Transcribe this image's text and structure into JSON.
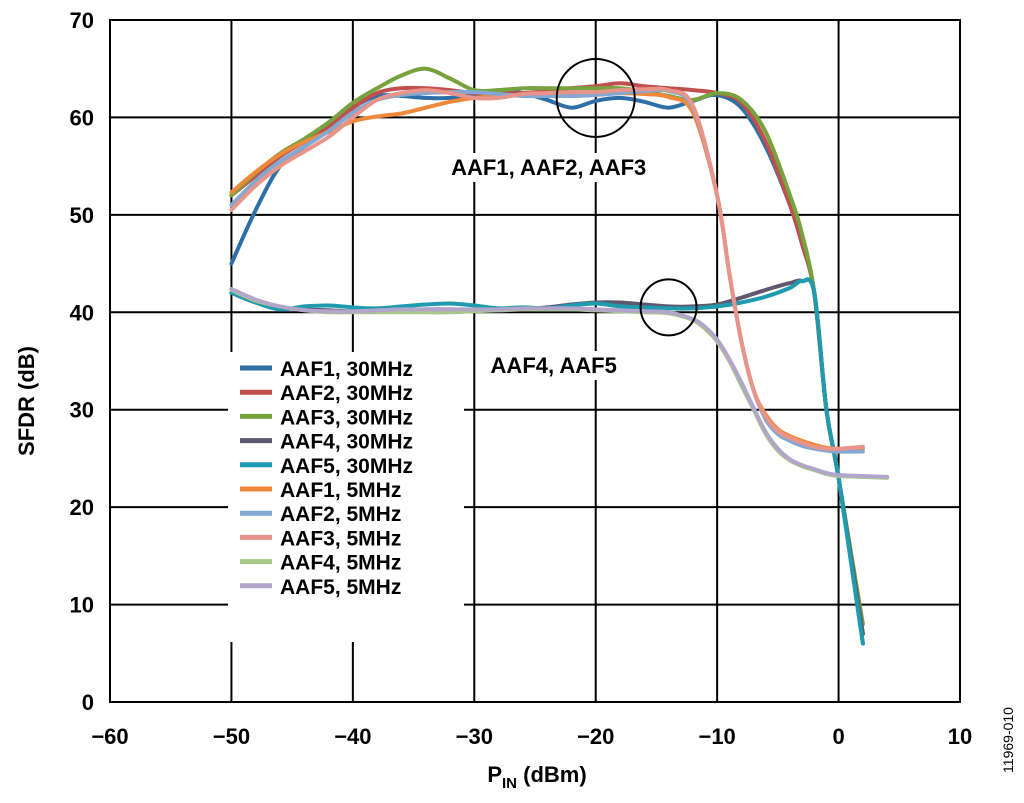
{
  "chart_data": {
    "type": "line",
    "xlabel_main": "P",
    "xlabel_sub": "IN",
    "xlabel_rest": " (dBm)",
    "ylabel": "SFDR (dB)",
    "xlim": [
      -60,
      10
    ],
    "ylim": [
      0,
      70
    ],
    "xticks": [
      -60,
      -50,
      -40,
      -30,
      -20,
      -10,
      0,
      10
    ],
    "xtick_labels": [
      "−60",
      "−50",
      "−40",
      "−30",
      "−20",
      "−10",
      "0",
      "10"
    ],
    "yticks": [
      0,
      10,
      20,
      30,
      40,
      50,
      60,
      70
    ],
    "ytick_labels": [
      "0",
      "10",
      "20",
      "30",
      "40",
      "50",
      "60",
      "70"
    ],
    "grid": true,
    "legend_position": "center-left",
    "figure_id": "11969-010",
    "annotations": [
      {
        "text": "AAF1, AAF2, AAF3",
        "circle_center": [
          -20,
          62
        ],
        "text_anchor": [
          -20,
          55
        ]
      },
      {
        "text": "AAF4, AAF5",
        "circle_center": [
          -14,
          40.5
        ],
        "text_anchor": [
          -20,
          35
        ]
      }
    ],
    "series": [
      {
        "name": "AAF1, 30MHz",
        "color": "#2e6fa7",
        "x": [
          -50,
          -48,
          -46,
          -44,
          -42,
          -40,
          -38,
          -36,
          -34,
          -32,
          -30,
          -28,
          -26,
          -24,
          -22,
          -20,
          -18,
          -16,
          -14,
          -12,
          -10,
          -8,
          -6,
          -4,
          -3,
          -2,
          -1,
          0,
          2
        ],
        "y": [
          45,
          50.5,
          55,
          57,
          58.7,
          61,
          62.2,
          62.2,
          62,
          62,
          62.3,
          62.8,
          62.5,
          61.8,
          61,
          61.7,
          62,
          61.6,
          61,
          61.7,
          62.3,
          61,
          57,
          51,
          47,
          42,
          30,
          23,
          6
        ]
      },
      {
        "name": "AAF2, 30MHz",
        "color": "#c0504d",
        "x": [
          -50,
          -48,
          -46,
          -44,
          -42,
          -40,
          -38,
          -36,
          -34,
          -32,
          -30,
          -28,
          -26,
          -24,
          -22,
          -20,
          -18,
          -16,
          -14,
          -12,
          -10,
          -8,
          -6,
          -4,
          -3,
          -2,
          -1,
          0,
          2
        ],
        "y": [
          52,
          54,
          56,
          57.5,
          59,
          61,
          62.5,
          63,
          63,
          62.8,
          62.5,
          62.5,
          62.5,
          62.7,
          63,
          63.2,
          63.5,
          63.2,
          63,
          62.8,
          62.5,
          61.5,
          57.5,
          51,
          47,
          42,
          30,
          23,
          7
        ]
      },
      {
        "name": "AAF3, 30MHz",
        "color": "#77a33e",
        "x": [
          -50,
          -48,
          -46,
          -44,
          -42,
          -40,
          -38,
          -36,
          -34,
          -32,
          -30,
          -28,
          -26,
          -24,
          -22,
          -20,
          -18,
          -16,
          -14,
          -12,
          -10,
          -8,
          -6,
          -4,
          -3,
          -2,
          -1,
          0,
          2
        ],
        "y": [
          52,
          54.3,
          56.3,
          57.8,
          59.5,
          61.5,
          63,
          64.3,
          65,
          64,
          62.8,
          62.8,
          63,
          63,
          63,
          63,
          63,
          62.7,
          62.2,
          61.8,
          62.5,
          61.8,
          58.5,
          52,
          48,
          42,
          30,
          23,
          8
        ]
      },
      {
        "name": "AAF4, 30MHz",
        "color": "#5f5870",
        "x": [
          -50,
          -48,
          -46,
          -44,
          -42,
          -40,
          -38,
          -36,
          -34,
          -32,
          -30,
          -28,
          -26,
          -24,
          -22,
          -20,
          -18,
          -16,
          -14,
          -12,
          -10,
          -8,
          -6,
          -4,
          -3,
          -2,
          -1,
          0,
          2
        ],
        "y": [
          42,
          41,
          40.5,
          40.3,
          40.2,
          40.1,
          40.2,
          40.2,
          40.3,
          40.3,
          40.2,
          40.2,
          40.3,
          40.5,
          40.8,
          41,
          41,
          40.8,
          40.6,
          40.6,
          40.8,
          41.5,
          42.3,
          43,
          43.2,
          42,
          30,
          23,
          7
        ]
      },
      {
        "name": "AAF5, 30MHz",
        "color": "#1f9bb0",
        "x": [
          -50,
          -48,
          -46,
          -44,
          -42,
          -40,
          -38,
          -36,
          -34,
          -32,
          -30,
          -28,
          -26,
          -24,
          -22,
          -20,
          -18,
          -16,
          -14,
          -12,
          -10,
          -8,
          -6,
          -4,
          -3,
          -2,
          -1,
          0,
          2
        ],
        "y": [
          42,
          41,
          40.3,
          40.6,
          40.7,
          40.5,
          40.4,
          40.6,
          40.8,
          40.9,
          40.7,
          40.4,
          40.5,
          40.4,
          40.7,
          40.9,
          40.6,
          40.5,
          40.4,
          40.4,
          40.6,
          41,
          41.6,
          42.5,
          43.2,
          42,
          30,
          23,
          6
        ]
      },
      {
        "name": "AAF1, 5MHz",
        "color": "#f0883a",
        "x": [
          -50,
          -48,
          -46,
          -44,
          -42,
          -40,
          -38,
          -36,
          -34,
          -32,
          -30,
          -28,
          -26,
          -24,
          -22,
          -20,
          -18,
          -16,
          -14,
          -12,
          -10,
          -9,
          -8,
          -7,
          -6,
          -5,
          -4,
          -3,
          -2,
          -1,
          0,
          2
        ],
        "y": [
          52.3,
          54.4,
          56.2,
          57.5,
          58.5,
          59.6,
          60.1,
          60.4,
          61,
          61.6,
          62,
          62.2,
          62.3,
          62.4,
          62.5,
          62.5,
          62.5,
          62.4,
          62.1,
          60.5,
          52,
          44,
          37,
          32,
          29.5,
          28,
          27.3,
          26.8,
          26.4,
          26.1,
          26,
          26
        ]
      },
      {
        "name": "AAF2, 5MHz",
        "color": "#85a8d2",
        "x": [
          -50,
          -48,
          -46,
          -44,
          -42,
          -40,
          -38,
          -36,
          -34,
          -32,
          -30,
          -28,
          -26,
          -24,
          -22,
          -20,
          -18,
          -16,
          -14,
          -12,
          -10,
          -9,
          -8,
          -7,
          -6,
          -5,
          -4,
          -3,
          -2,
          -1,
          0,
          2
        ],
        "y": [
          51,
          53.5,
          55.5,
          57,
          58.6,
          60.5,
          61.8,
          62.3,
          62.5,
          62.6,
          62.6,
          62.4,
          62.2,
          62.2,
          62.2,
          62.3,
          62.5,
          62.7,
          62.7,
          61,
          52,
          44,
          37,
          32,
          29,
          27.5,
          26.8,
          26.3,
          26,
          25.8,
          25.7,
          25.7
        ]
      },
      {
        "name": "AAF3, 5MHz",
        "color": "#e8948a",
        "x": [
          -50,
          -48,
          -46,
          -44,
          -42,
          -40,
          -38,
          -36,
          -34,
          -32,
          -30,
          -28,
          -26,
          -24,
          -22,
          -20,
          -18,
          -16,
          -14,
          -12,
          -10,
          -9,
          -8,
          -7,
          -6,
          -5,
          -4,
          -3,
          -2,
          -1,
          0,
          2
        ],
        "y": [
          50.5,
          53,
          55,
          56.5,
          58,
          60,
          61.8,
          62.5,
          62.8,
          62.5,
          62,
          62,
          62.4,
          62.5,
          62.6,
          62.6,
          62.8,
          62.9,
          62.8,
          61.2,
          52,
          44,
          37,
          32,
          29.3,
          27.8,
          27.1,
          26.6,
          26.2,
          26,
          26,
          26.2
        ]
      },
      {
        "name": "AAF4, 5MHz",
        "color": "#a8c98a",
        "x": [
          -50,
          -48,
          -46,
          -44,
          -42,
          -40,
          -38,
          -36,
          -34,
          -32,
          -30,
          -28,
          -26,
          -24,
          -22,
          -20,
          -18,
          -16,
          -14,
          -12,
          -11,
          -10,
          -9,
          -8,
          -7,
          -6,
          -5,
          -4,
          -3,
          -2,
          -1,
          0,
          2,
          4
        ],
        "y": [
          42.3,
          41.2,
          40.6,
          40.2,
          40,
          40,
          40,
          40,
          40,
          40,
          40.1,
          40.2,
          40.3,
          40.3,
          40.3,
          40.2,
          40.1,
          40,
          39.9,
          39.2,
          38.3,
          37,
          35,
          32.5,
          30,
          27.5,
          25.8,
          24.8,
          24.2,
          23.8,
          23.4,
          23.2,
          23.1,
          23
        ]
      },
      {
        "name": "AAF5, 5MHz",
        "color": "#b2a5c9",
        "x": [
          -50,
          -48,
          -46,
          -44,
          -42,
          -40,
          -38,
          -36,
          -34,
          -32,
          -30,
          -28,
          -26,
          -24,
          -22,
          -20,
          -18,
          -16,
          -14,
          -12,
          -11,
          -10,
          -9,
          -8,
          -7,
          -6,
          -5,
          -4,
          -3,
          -2,
          -1,
          0,
          2,
          4
        ],
        "y": [
          42.4,
          41.3,
          40.6,
          40.2,
          40.1,
          40.1,
          40.2,
          40.3,
          40.3,
          40.3,
          40.3,
          40.3,
          40.4,
          40.4,
          40.4,
          40.3,
          40.2,
          40.1,
          40,
          39.3,
          38.5,
          37.2,
          35.2,
          32.8,
          30.2,
          27.7,
          26,
          24.9,
          24.3,
          23.9,
          23.5,
          23.3,
          23.2,
          23.1
        ]
      }
    ]
  }
}
